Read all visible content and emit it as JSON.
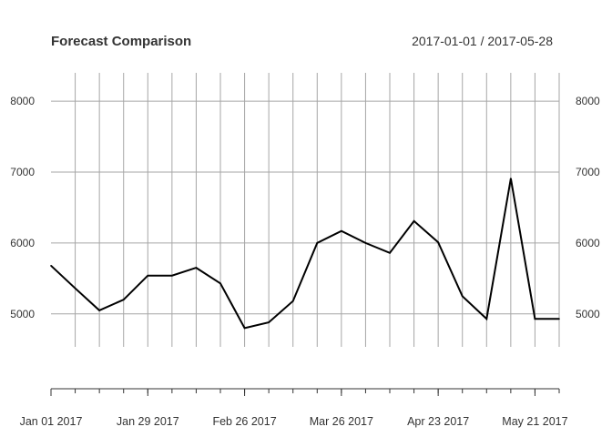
{
  "chart_data": {
    "type": "line",
    "title": "Forecast Comparison",
    "date_range": "2017-01-01 / 2017-05-28",
    "x": [
      "2017-01-01",
      "2017-01-08",
      "2017-01-15",
      "2017-01-22",
      "2017-01-29",
      "2017-02-05",
      "2017-02-12",
      "2017-02-19",
      "2017-02-26",
      "2017-03-05",
      "2017-03-12",
      "2017-03-19",
      "2017-03-26",
      "2017-04-02",
      "2017-04-09",
      "2017-04-16",
      "2017-04-23",
      "2017-04-30",
      "2017-05-07",
      "2017-05-14",
      "2017-05-21",
      "2017-05-28"
    ],
    "series": [
      {
        "values": [
          5680,
          5360,
          5050,
          5200,
          5540,
          5540,
          5650,
          5430,
          4800,
          4880,
          5180,
          6000,
          6170,
          6000,
          5860,
          6310,
          6010,
          5250,
          4930,
          6910,
          4930,
          4930
        ],
        "color": "#000000"
      }
    ],
    "ylim": [
      3700,
      8400
    ],
    "yticks": [
      5000,
      6000,
      7000,
      8000
    ],
    "ytick_labels": [
      "5000",
      "6000",
      "7000",
      "8000"
    ],
    "xtick_dates": [
      "2017-01-01",
      "2017-01-29",
      "2017-02-26",
      "2017-03-26",
      "2017-04-23",
      "2017-05-21"
    ],
    "xtick_labels": [
      "Jan 01 2017",
      "Jan 29 2017",
      "Feb 26 2017",
      "Mar 26 2017",
      "Apr 23 2017",
      "May 21 2017"
    ],
    "grid": true,
    "y_axis_labels_both_sides": true,
    "colors": {
      "line": "#000000",
      "grid": "#a6a6a6",
      "text": "#333333"
    }
  }
}
